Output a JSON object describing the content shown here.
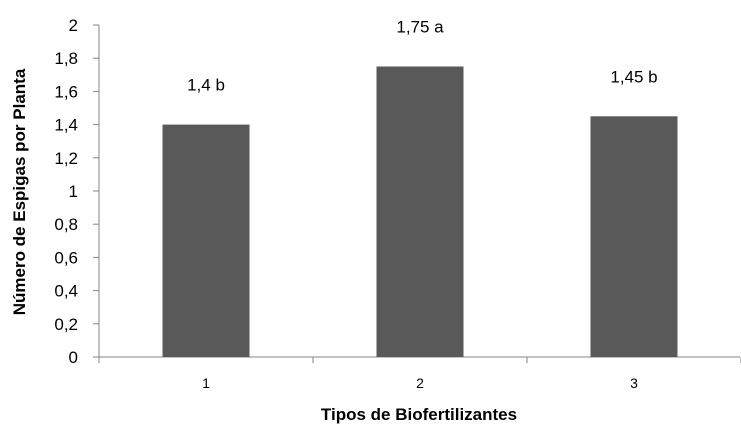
{
  "chart_data": {
    "type": "bar",
    "categories": [
      "1",
      "2",
      "3"
    ],
    "values": [
      1.4,
      1.75,
      1.45
    ],
    "data_labels": [
      "1,4 b",
      "1,75 a",
      "1,45 b"
    ],
    "xlabel": "Tipos de Biofertilizantes",
    "ylabel": "Número de Espigas por Planta",
    "ylim": [
      0,
      2
    ],
    "yticks": [
      0,
      0.2,
      0.4,
      0.6,
      0.8,
      1,
      1.2,
      1.4,
      1.6,
      1.8,
      2
    ],
    "ytick_labels": [
      "0",
      "0,2",
      "0,4",
      "0,6",
      "0,8",
      "1",
      "1,2",
      "1,4",
      "1,6",
      "1,8",
      "2"
    ],
    "grid": false,
    "legend": "none",
    "bar_color": "#595959",
    "axis_color": "#868686"
  }
}
